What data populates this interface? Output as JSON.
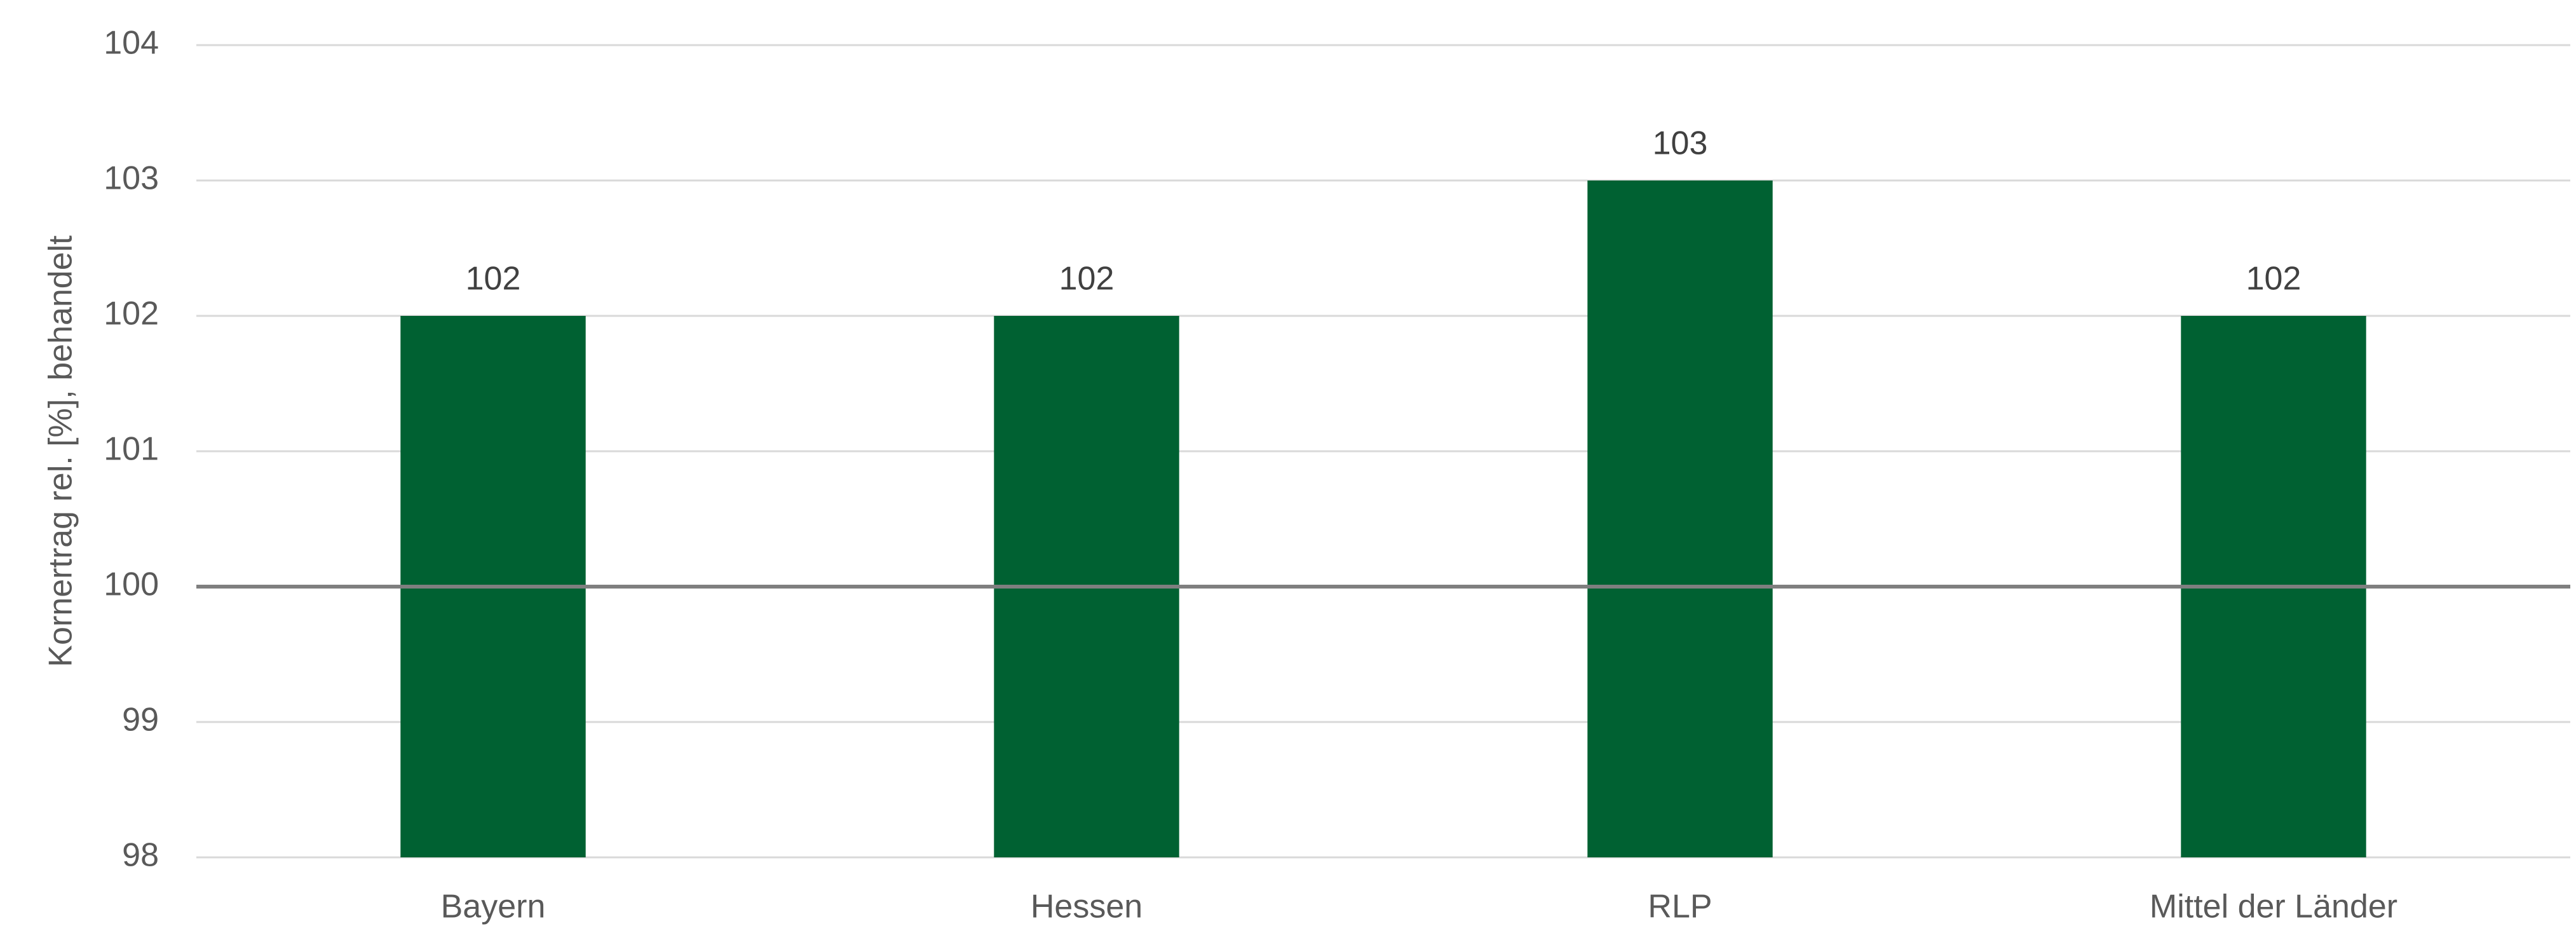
{
  "chart_data": {
    "type": "bar",
    "y_label": "Kornertrag rel. [%], behandelt",
    "categories": [
      "Bayern",
      "Hessen",
      "RLP",
      "Mittel der Länder"
    ],
    "values": [
      102,
      102,
      103,
      102
    ],
    "color": "#006132",
    "ylim": [
      98,
      104
    ],
    "yticks": [
      98,
      99,
      100,
      101,
      102,
      103,
      104
    ],
    "grid": true,
    "reference_line": 100
  }
}
